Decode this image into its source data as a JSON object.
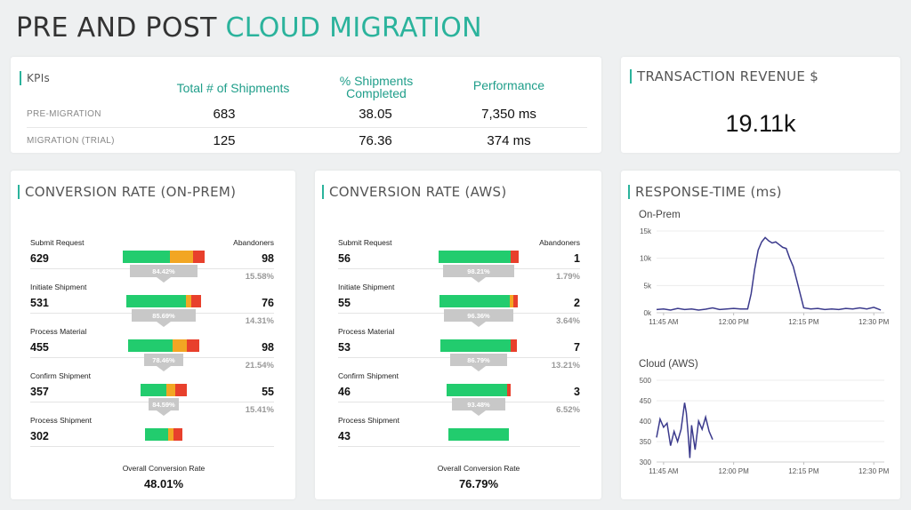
{
  "page": {
    "title_main": "PRE AND POST ",
    "title_accent": "CLOUD MIGRATION"
  },
  "kpis": {
    "title": "KPIs",
    "headers": [
      "Total # of Shipments",
      "% Shipments Completed",
      "Performance"
    ],
    "rows": [
      {
        "label": "PRE-MIGRATION",
        "shipments": "683",
        "completed": "38.05",
        "performance": "7,350 ms"
      },
      {
        "label": "MIGRATION (TRIAL)",
        "shipments": "125",
        "completed": "76.36",
        "performance": "374 ms"
      }
    ]
  },
  "revenue": {
    "title": "TRANSACTION REVENUE $",
    "value": "19.11k"
  },
  "onprem": {
    "title": "CONVERSION RATE (ON-PREM)",
    "abandoners_label": "Abandoners",
    "steps": [
      {
        "label": "Submit Request",
        "count": "629",
        "abandoners": "98",
        "abandon_pct": "15.58%",
        "conversion": "84.42%"
      },
      {
        "label": "Initiate Shipment",
        "count": "531",
        "abandoners": "76",
        "abandon_pct": "14.31%",
        "conversion": "85.69%"
      },
      {
        "label": "Process Material",
        "count": "455",
        "abandoners": "98",
        "abandon_pct": "21.54%",
        "conversion": "78.46%"
      },
      {
        "label": "Confirm Shipment",
        "count": "357",
        "abandoners": "55",
        "abandon_pct": "15.41%",
        "conversion": "84.59%"
      },
      {
        "label": "Process Shipment",
        "count": "302"
      }
    ],
    "overall_label": "Overall Conversion Rate",
    "overall_value": "48.01%"
  },
  "aws": {
    "title": "CONVERSION RATE (AWS)",
    "abandoners_label": "Abandoners",
    "steps": [
      {
        "label": "Submit Request",
        "count": "56",
        "abandoners": "1",
        "abandon_pct": "1.79%",
        "conversion": "98.21%"
      },
      {
        "label": "Initiate Shipment",
        "count": "55",
        "abandoners": "2",
        "abandon_pct": "3.64%",
        "conversion": "96.36%"
      },
      {
        "label": "Process Material",
        "count": "53",
        "abandoners": "7",
        "abandon_pct": "13.21%",
        "conversion": "86.79%"
      },
      {
        "label": "Confirm Shipment",
        "count": "46",
        "abandoners": "3",
        "abandon_pct": "6.52%",
        "conversion": "93.48%"
      },
      {
        "label": "Process Shipment",
        "count": "43"
      }
    ],
    "overall_label": "Overall Conversion Rate",
    "overall_value": "76.79%"
  },
  "colors": {
    "accent": "#2bb39c",
    "bar_green": "#22cc6e",
    "bar_yellow": "#f2a623",
    "bar_red": "#e8402c",
    "connector_grey": "#c8c8c8",
    "line": "#3b3a8c"
  },
  "response_time": {
    "title": "RESPONSE-TIME (ms)",
    "chart_data": [
      {
        "type": "line",
        "title": "On-Prem",
        "x_ticks": [
          "11:45 AM",
          "12:00 PM",
          "12:15 PM",
          "12:30 PM"
        ],
        "y_ticks": [
          "0k",
          "5k",
          "10k",
          "15k"
        ],
        "ylim": [
          0,
          15000
        ],
        "x_range_min": [
          0,
          65
        ],
        "x": [
          0,
          2,
          4,
          6,
          8,
          10,
          12,
          14,
          16,
          18,
          20,
          22,
          24,
          26,
          27,
          28,
          29,
          30,
          31,
          32,
          33,
          34,
          35,
          36,
          37,
          38,
          39,
          40,
          42,
          44,
          46,
          48,
          50,
          52,
          54,
          56,
          58,
          60,
          62,
          64
        ],
        "y": [
          600,
          700,
          500,
          800,
          600,
          700,
          500,
          650,
          900,
          600,
          700,
          800,
          700,
          700,
          3500,
          8000,
          11500,
          13000,
          13800,
          13200,
          12800,
          13000,
          12500,
          12000,
          11800,
          10000,
          8500,
          6000,
          900,
          700,
          800,
          600,
          700,
          600,
          800,
          700,
          900,
          700,
          1000,
          500
        ]
      },
      {
        "type": "line",
        "title": "Cloud (AWS)",
        "x_ticks": [
          "11:45 AM",
          "12:00 PM",
          "12:15 PM",
          "12:30 PM"
        ],
        "y_ticks": [
          "300",
          "350",
          "400",
          "450",
          "500"
        ],
        "ylim": [
          300,
          500
        ],
        "x_range_min": [
          0,
          65
        ],
        "x": [
          0,
          1,
          2,
          3,
          4,
          5,
          6,
          7,
          8,
          8.5,
          9,
          9.5,
          10,
          11,
          12,
          13,
          14,
          15,
          16
        ],
        "y": [
          360,
          405,
          385,
          395,
          340,
          375,
          350,
          380,
          445,
          420,
          370,
          310,
          390,
          330,
          400,
          380,
          410,
          375,
          355
        ]
      }
    ]
  }
}
